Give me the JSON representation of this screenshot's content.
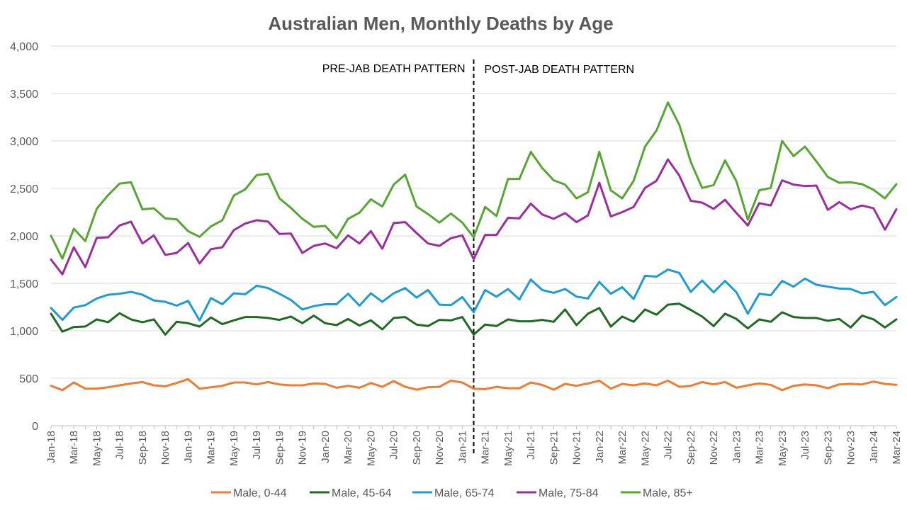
{
  "chart_data": {
    "type": "line",
    "title": "Australian Men, Monthly Deaths by Age",
    "ylim": [
      0,
      4000
    ],
    "yticks": [
      0,
      500,
      1000,
      1500,
      2000,
      2500,
      3000,
      3500,
      4000
    ],
    "ytick_labels": [
      "0",
      "500",
      "1,000",
      "1,500",
      "2,000",
      "2,500",
      "3,000",
      "3,500",
      "4,000"
    ],
    "grid": "horizontal",
    "legend": "bottom",
    "x": [
      "Jan-18",
      "Feb-18",
      "Mar-18",
      "Apr-18",
      "May-18",
      "Jun-18",
      "Jul-18",
      "Aug-18",
      "Sep-18",
      "Oct-18",
      "Nov-18",
      "Dec-18",
      "Jan-19",
      "Feb-19",
      "Mar-19",
      "Apr-19",
      "May-19",
      "Jun-19",
      "Jul-19",
      "Aug-19",
      "Sep-19",
      "Oct-19",
      "Nov-19",
      "Dec-19",
      "Jan-20",
      "Feb-20",
      "Mar-20",
      "Apr-20",
      "May-20",
      "Jun-20",
      "Jul-20",
      "Aug-20",
      "Sep-20",
      "Oct-20",
      "Nov-20",
      "Dec-20",
      "Jan-21",
      "Feb-21",
      "Mar-21",
      "Apr-21",
      "May-21",
      "Jun-21",
      "Jul-21",
      "Aug-21",
      "Sep-21",
      "Oct-21",
      "Nov-21",
      "Dec-21",
      "Jan-22",
      "Feb-22",
      "Mar-22",
      "Apr-22",
      "May-22",
      "Jun-22",
      "Jul-22",
      "Aug-22",
      "Sep-22",
      "Oct-22",
      "Nov-22",
      "Dec-22",
      "Jan-23",
      "Feb-23",
      "Mar-23",
      "Apr-23",
      "May-23",
      "Jun-23",
      "Jul-23",
      "Aug-23",
      "Sep-23",
      "Oct-23",
      "Nov-23",
      "Dec-23",
      "Jan-24",
      "Feb-24",
      "Mar-24"
    ],
    "xtick_labels": [
      "Jan-18",
      "Mar-18",
      "May-18",
      "Jul-18",
      "Sep-18",
      "Nov-18",
      "Jan-19",
      "Mar-19",
      "May-19",
      "Jul-19",
      "Sep-19",
      "Nov-19",
      "Jan-20",
      "Mar-20",
      "May-20",
      "Jul-20",
      "Sep-20",
      "Nov-20",
      "Jan-21",
      "Mar-21",
      "May-21",
      "Jul-21",
      "Sep-21",
      "Nov-21",
      "Jan-22",
      "Mar-22",
      "May-22",
      "Jul-22",
      "Sep-22",
      "Nov-22",
      "Jan-23",
      "Mar-23",
      "May-23",
      "Jul-23",
      "Sep-23",
      "Nov-23",
      "Jan-24",
      "Mar-24"
    ],
    "series": [
      {
        "name": "Male, 0-44",
        "color": "#ED7D31",
        "values": [
          420,
          375,
          455,
          390,
          390,
          405,
          425,
          445,
          460,
          425,
          415,
          450,
          490,
          390,
          405,
          420,
          455,
          455,
          435,
          460,
          435,
          425,
          425,
          445,
          440,
          400,
          420,
          400,
          450,
          410,
          470,
          410,
          380,
          405,
          410,
          475,
          455,
          390,
          385,
          410,
          395,
          395,
          455,
          430,
          380,
          440,
          420,
          445,
          475,
          390,
          440,
          425,
          445,
          425,
          475,
          410,
          420,
          460,
          435,
          460,
          400,
          425,
          445,
          430,
          375,
          420,
          435,
          425,
          395,
          435,
          440,
          435,
          465,
          440,
          430
        ]
      },
      {
        "name": "Male, 45-64",
        "color": "#1E6B21",
        "values": [
          1180,
          990,
          1040,
          1045,
          1120,
          1090,
          1185,
          1120,
          1090,
          1120,
          960,
          1095,
          1080,
          1045,
          1140,
          1070,
          1110,
          1145,
          1145,
          1135,
          1115,
          1150,
          1080,
          1160,
          1080,
          1060,
          1125,
          1055,
          1110,
          1015,
          1135,
          1145,
          1065,
          1050,
          1115,
          1110,
          1145,
          960,
          1065,
          1050,
          1120,
          1100,
          1100,
          1115,
          1095,
          1225,
          1060,
          1180,
          1240,
          1045,
          1150,
          1095,
          1225,
          1170,
          1275,
          1285,
          1220,
          1150,
          1050,
          1180,
          1125,
          1025,
          1120,
          1095,
          1195,
          1145,
          1135,
          1135,
          1105,
          1125,
          1035,
          1160,
          1120,
          1035,
          1120
        ]
      },
      {
        "name": "Male, 65-74",
        "color": "#1E9BD7",
        "values": [
          1240,
          1115,
          1245,
          1270,
          1340,
          1380,
          1390,
          1410,
          1380,
          1320,
          1305,
          1265,
          1315,
          1110,
          1345,
          1280,
          1395,
          1385,
          1475,
          1450,
          1390,
          1325,
          1225,
          1260,
          1280,
          1280,
          1390,
          1265,
          1395,
          1305,
          1395,
          1450,
          1350,
          1430,
          1275,
          1270,
          1355,
          1195,
          1430,
          1360,
          1440,
          1330,
          1540,
          1430,
          1400,
          1440,
          1360,
          1340,
          1515,
          1390,
          1460,
          1335,
          1580,
          1570,
          1645,
          1610,
          1410,
          1530,
          1405,
          1525,
          1405,
          1180,
          1390,
          1375,
          1525,
          1465,
          1550,
          1485,
          1465,
          1445,
          1440,
          1395,
          1410,
          1270,
          1355
        ]
      },
      {
        "name": "Male, 75-84",
        "color": "#9B2D9E",
        "values": [
          1750,
          1595,
          1880,
          1670,
          1980,
          1985,
          2110,
          2150,
          1920,
          2005,
          1800,
          1820,
          1925,
          1710,
          1860,
          1880,
          2060,
          2130,
          2165,
          2150,
          2020,
          2025,
          1820,
          1895,
          1920,
          1870,
          2005,
          1920,
          2050,
          1865,
          2135,
          2145,
          2030,
          1920,
          1895,
          1975,
          2005,
          1755,
          2010,
          2010,
          2190,
          2185,
          2340,
          2225,
          2180,
          2240,
          2145,
          2215,
          2560,
          2205,
          2250,
          2305,
          2505,
          2580,
          2805,
          2635,
          2370,
          2350,
          2285,
          2380,
          2240,
          2110,
          2345,
          2320,
          2585,
          2540,
          2525,
          2530,
          2275,
          2355,
          2280,
          2320,
          2290,
          2065,
          2280
        ]
      },
      {
        "name": "Male, 85+",
        "color": "#56A732",
        "values": [
          2000,
          1760,
          2075,
          1945,
          2285,
          2430,
          2550,
          2565,
          2280,
          2290,
          2185,
          2175,
          2050,
          1990,
          2100,
          2165,
          2425,
          2490,
          2640,
          2655,
          2395,
          2295,
          2180,
          2095,
          2105,
          1975,
          2180,
          2245,
          2385,
          2310,
          2540,
          2645,
          2310,
          2230,
          2140,
          2235,
          2140,
          1985,
          2305,
          2210,
          2600,
          2600,
          2885,
          2715,
          2585,
          2540,
          2395,
          2460,
          2885,
          2480,
          2395,
          2580,
          2940,
          3110,
          3405,
          3170,
          2780,
          2505,
          2535,
          2795,
          2575,
          2170,
          2480,
          2505,
          3000,
          2840,
          2940,
          2785,
          2620,
          2560,
          2565,
          2545,
          2485,
          2395,
          2545
        ]
      }
    ],
    "annotations": {
      "divider_at": "Feb-21",
      "left_label": "PRE-JAB DEATH PATTERN",
      "right_label": "POST-JAB DEATH PATTERN"
    }
  }
}
